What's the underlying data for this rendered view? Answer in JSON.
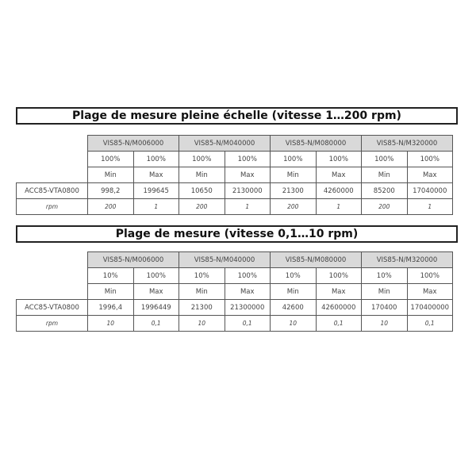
{
  "sections": [
    {
      "title": "Plage de mesure pleine échelle (vitesse 1…200 rpm)",
      "models": [
        "VIS85-N/M006000",
        "VIS85-N/M040000",
        "VIS85-N/M080000",
        "VIS85-N/M320000"
      ],
      "percent": [
        "100%",
        "100%",
        "100%",
        "100%",
        "100%",
        "100%",
        "100%",
        "100%"
      ],
      "minmax": [
        "Min",
        "Max",
        "Min",
        "Max",
        "Min",
        "Max",
        "Min",
        "Max"
      ],
      "row_label": "ACC85-VTA0800",
      "values": [
        "998,2",
        "199645",
        "10650",
        "2130000",
        "21300",
        "4260000",
        "85200",
        "17040000"
      ],
      "rpm_label": "rpm",
      "rpm": [
        "200",
        "1",
        "200",
        "1",
        "200",
        "1",
        "200",
        "1"
      ]
    },
    {
      "title": "Plage de mesure  (vitesse 0,1…10 rpm)",
      "models": [
        "VIS85-N/M006000",
        "VIS85-N/M040000",
        "VIS85-N/M080000",
        "VIS85-N/M320000"
      ],
      "percent": [
        "10%",
        "100%",
        "10%",
        "100%",
        "10%",
        "100%",
        "10%",
        "100%"
      ],
      "minmax": [
        "Min",
        "Max",
        "Min",
        "Max",
        "Min",
        "Max",
        "Min",
        "Max"
      ],
      "row_label": "ACC85-VTA0800",
      "values": [
        "1996,4",
        "1996449",
        "21300",
        "21300000",
        "42600",
        "42600000",
        "170400",
        "170400000"
      ],
      "rpm_label": "rpm",
      "rpm": [
        "10",
        "0,1",
        "10",
        "0,1",
        "10",
        "0,1",
        "10",
        "0,1"
      ]
    }
  ]
}
